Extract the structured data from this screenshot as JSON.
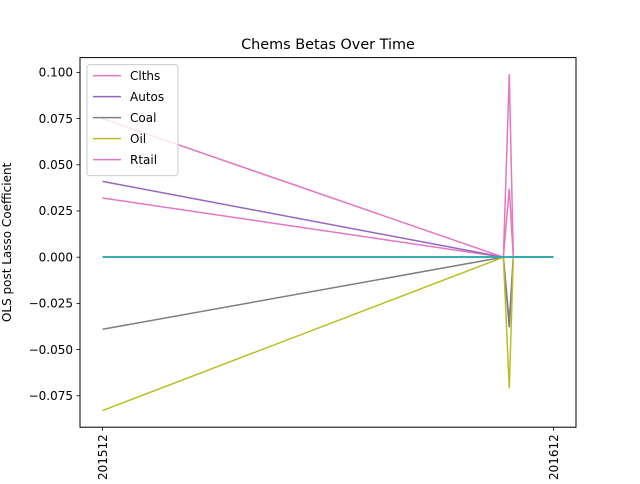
{
  "chart_data": {
    "type": "line",
    "title": "Chems Betas Over Time",
    "xlabel": "",
    "ylabel": "OLS post Lasso Coefficient",
    "x_ticks": [
      "201512",
      "201612"
    ],
    "y_ticks": [
      "0.100",
      "0.075",
      "0.050",
      "0.025",
      "0.000",
      "−0.025",
      "−0.050",
      "−0.075"
    ],
    "xlim": [
      -0.05,
      1.05
    ],
    "ylim": [
      -0.092,
      0.108
    ],
    "grid": false,
    "legend_position": "upper-left",
    "x": [
      0.0,
      0.889,
      0.902,
      0.911,
      1.0
    ],
    "series": [
      {
        "name": "Clths",
        "color": "#e377c2",
        "in_legend": true,
        "values": [
          0.032,
          0.0,
          0.037,
          0.0,
          0.0
        ]
      },
      {
        "name": "Autos",
        "color": "#9467bd",
        "in_legend": true,
        "values": [
          0.041,
          0.0,
          -0.035,
          0.0,
          0.0
        ]
      },
      {
        "name": "Coal",
        "color": "#7f7f7f",
        "in_legend": true,
        "values": [
          -0.039,
          0.0,
          -0.038,
          0.0,
          0.0
        ]
      },
      {
        "name": "Oil",
        "color": "#bcbd22",
        "in_legend": true,
        "values": [
          -0.083,
          0.0,
          -0.071,
          0.0,
          0.0
        ]
      },
      {
        "name": "Rtail",
        "color": "#e377c2",
        "in_legend": true,
        "values": [
          0.075,
          0.0,
          0.099,
          0.0,
          0.0
        ]
      },
      {
        "name": "",
        "color": "#1f77b4",
        "in_legend": false,
        "values": [
          0.0,
          0.0,
          0.0,
          0.0,
          0.0
        ]
      },
      {
        "name": "",
        "color": "#ff7f0e",
        "in_legend": false,
        "values": [
          0.0,
          0.0,
          0.0,
          0.0,
          0.0
        ]
      },
      {
        "name": "",
        "color": "#2ca02c",
        "in_legend": false,
        "values": [
          0.0,
          0.0,
          0.0,
          0.0,
          0.0
        ]
      },
      {
        "name": "",
        "color": "#d62728",
        "in_legend": false,
        "values": [
          0.0,
          0.0,
          0.0,
          0.0,
          0.0
        ]
      },
      {
        "name": "",
        "color": "#8c564b",
        "in_legend": false,
        "values": [
          0.0,
          0.0,
          0.0,
          0.0,
          0.0
        ]
      },
      {
        "name": "",
        "color": "#17becf",
        "in_legend": false,
        "values": [
          0.0,
          0.0,
          0.0,
          0.0,
          0.0
        ]
      }
    ]
  }
}
